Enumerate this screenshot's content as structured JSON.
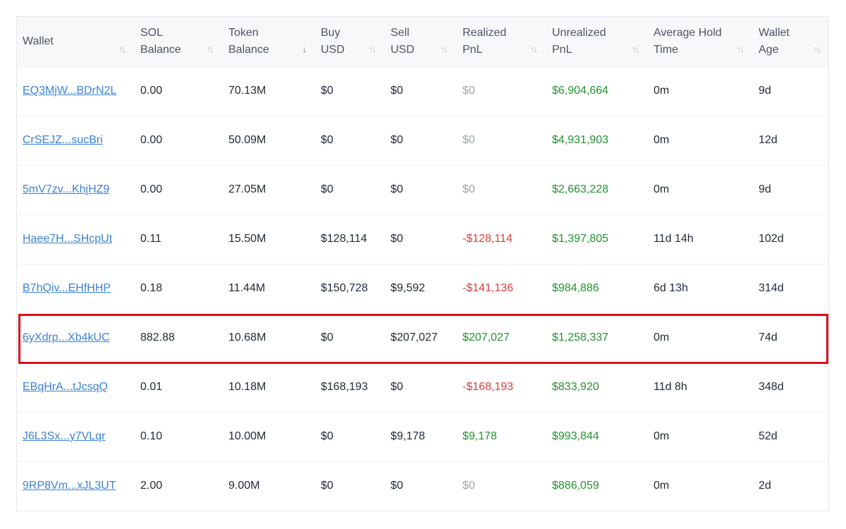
{
  "columns": [
    {
      "key": "wallet",
      "label": "Wallet"
    },
    {
      "key": "sol",
      "label": "SOL Balance"
    },
    {
      "key": "token",
      "label": "Token Balance"
    },
    {
      "key": "buy",
      "label": "Buy USD"
    },
    {
      "key": "sell",
      "label": "Sell USD"
    },
    {
      "key": "realized",
      "label": "Realized PnL"
    },
    {
      "key": "unrealized",
      "label": "Unrealized PnL"
    },
    {
      "key": "hold",
      "label": "Average Hold Time"
    },
    {
      "key": "age",
      "label": "Wallet Age"
    }
  ],
  "sort_icon": "↑↓",
  "active_sort_icon": "↓",
  "active_sort_column": "token",
  "highlighted_row": 5,
  "colors": {
    "positive": "#22922e",
    "negative": "#e23b3b",
    "muted": "#9ca3af",
    "link": "#3b82d6",
    "highlight": "#d9121b"
  },
  "rows": [
    {
      "wallet": "EQ3MjW...BDrN2L",
      "sol": "0.00",
      "token": "70.13M",
      "buy": "$0",
      "sell": "$0",
      "realized": "$0",
      "realized_tone": "muted",
      "unrealized": "$6,904,664",
      "hold": "0m",
      "age": "9d"
    },
    {
      "wallet": "CrSEJZ...sucBri",
      "sol": "0.00",
      "token": "50.09M",
      "buy": "$0",
      "sell": "$0",
      "realized": "$0",
      "realized_tone": "muted",
      "unrealized": "$4,931,903",
      "hold": "0m",
      "age": "12d"
    },
    {
      "wallet": "5mV7zv...KhjHZ9",
      "sol": "0.00",
      "token": "27.05M",
      "buy": "$0",
      "sell": "$0",
      "realized": "$0",
      "realized_tone": "muted",
      "unrealized": "$2,663,228",
      "hold": "0m",
      "age": "9d"
    },
    {
      "wallet": "Haee7H...SHcpUt",
      "sol": "0.11",
      "token": "15.50M",
      "buy": "$128,114",
      "sell": "$0",
      "realized": "-$128,114",
      "realized_tone": "neg",
      "unrealized": "$1,397,805",
      "hold": "11d 14h",
      "age": "102d"
    },
    {
      "wallet": "B7hQiv...EHfHHP",
      "sol": "0.18",
      "token": "11.44M",
      "buy": "$150,728",
      "sell": "$9,592",
      "realized": "-$141,136",
      "realized_tone": "neg",
      "unrealized": "$984,886",
      "hold": "6d 13h",
      "age": "314d"
    },
    {
      "wallet": "6yXdrp...Xb4kUC",
      "sol": "882.88",
      "token": "10.68M",
      "buy": "$0",
      "sell": "$207,027",
      "realized": "$207,027",
      "realized_tone": "pos",
      "unrealized": "$1,258,337",
      "hold": "0m",
      "age": "74d"
    },
    {
      "wallet": "EBqHrA...tJcsqQ",
      "sol": "0.01",
      "token": "10.18M",
      "buy": "$168,193",
      "sell": "$0",
      "realized": "-$168,193",
      "realized_tone": "neg",
      "unrealized": "$833,920",
      "hold": "11d 8h",
      "age": "348d"
    },
    {
      "wallet": "J6L3Sx...y7VLqr",
      "sol": "0.10",
      "token": "10.00M",
      "buy": "$0",
      "sell": "$9,178",
      "realized": "$9,178",
      "realized_tone": "pos",
      "unrealized": "$993,844",
      "hold": "0m",
      "age": "52d"
    },
    {
      "wallet": "9RP8Vm...xJL3UT",
      "sol": "2.00",
      "token": "9.00M",
      "buy": "$0",
      "sell": "$0",
      "realized": "$0",
      "realized_tone": "muted",
      "unrealized": "$886,059",
      "hold": "0m",
      "age": "2d"
    }
  ]
}
